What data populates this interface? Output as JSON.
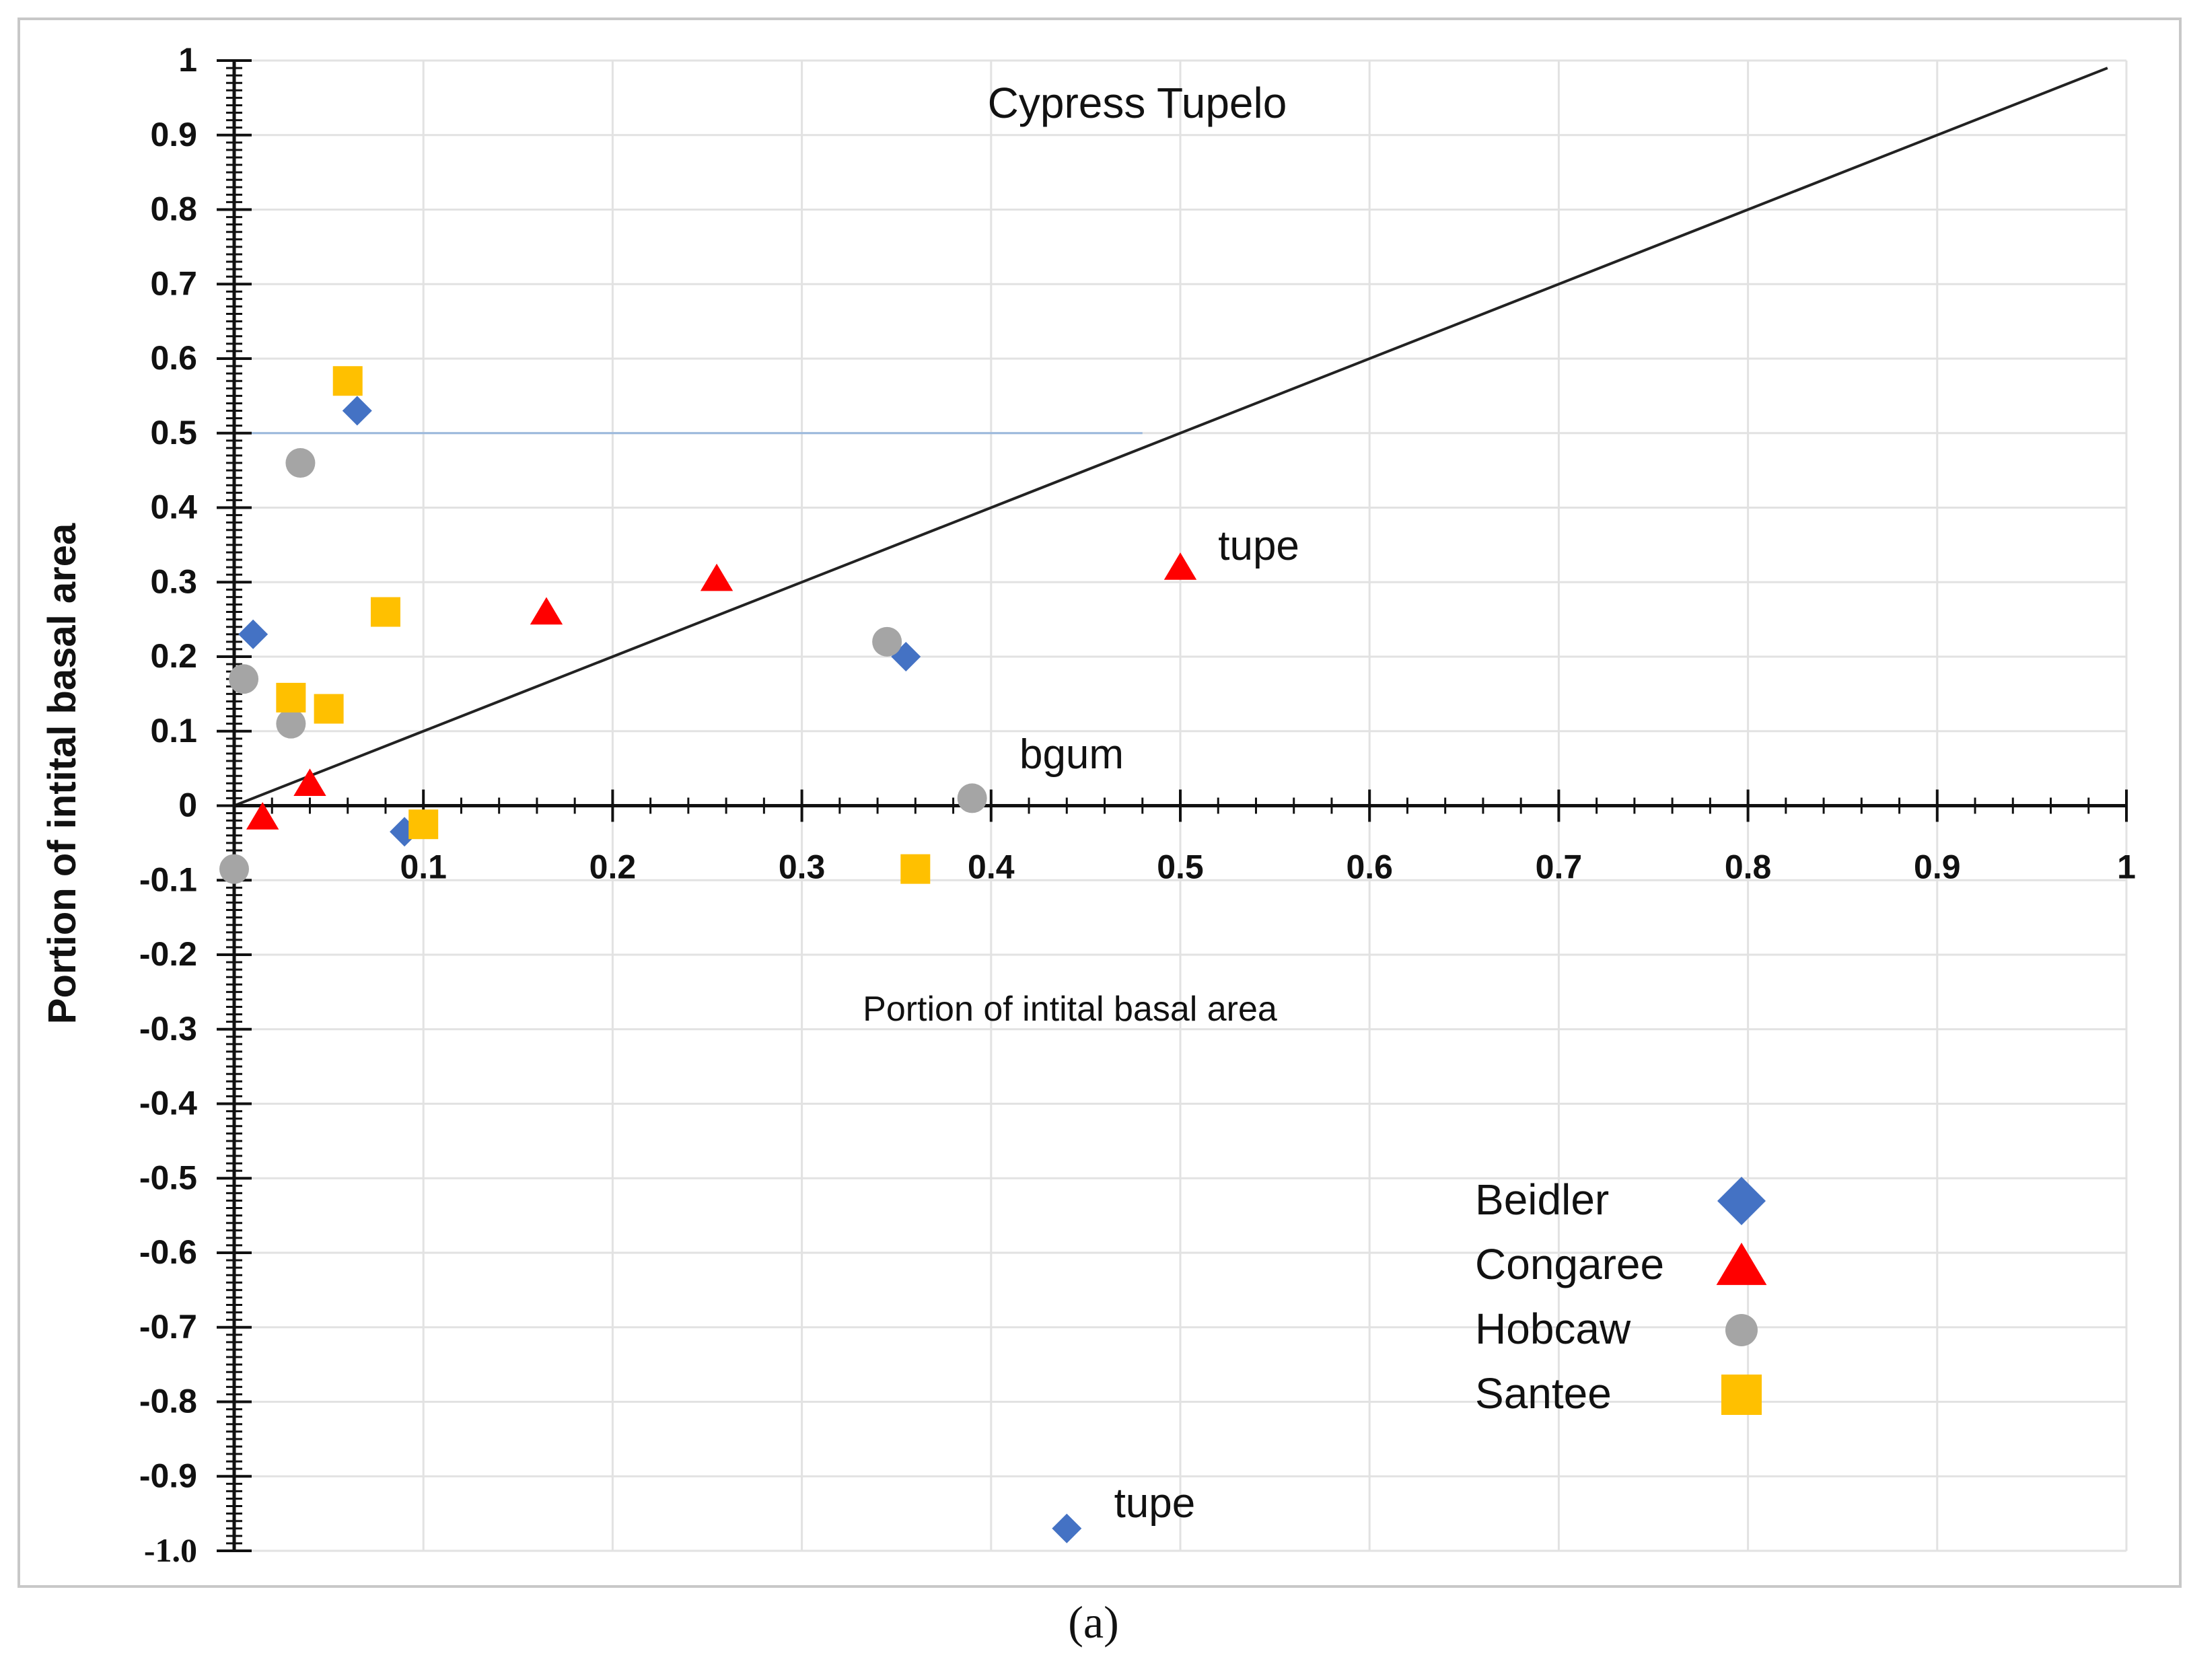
{
  "chart_data": {
    "type": "scatter",
    "title": "Cypress Tupelo",
    "xlabel": "Portion of intital basal area",
    "ylabel": "Portion of intital basal area",
    "xlim": [
      0,
      1
    ],
    "ylim": [
      -1.0,
      1
    ],
    "x_ticks": [
      "0.1",
      "0.2",
      "0.3",
      "0.4",
      "0.5",
      "0.6",
      "0.7",
      "0.8",
      "0.9",
      "1"
    ],
    "x_tick_values": [
      0.1,
      0.2,
      0.3,
      0.4,
      0.5,
      0.6,
      0.7,
      0.8,
      0.9,
      1
    ],
    "y_ticks": [
      "1",
      "0.9",
      "0.8",
      "0.7",
      "0.6",
      "0.5",
      "0.4",
      "0.3",
      "0.2",
      "0.1",
      "0",
      "-0.1",
      "-0.2",
      "-0.3",
      "-0.4",
      "-0.5",
      "-0.6",
      "-0.7",
      "-0.8",
      "-0.9",
      "-1.0"
    ],
    "y_tick_values": [
      1,
      0.9,
      0.8,
      0.7,
      0.6,
      0.5,
      0.4,
      0.3,
      0.2,
      0.1,
      0,
      -0.1,
      -0.2,
      -0.3,
      -0.4,
      -0.5,
      -0.6,
      -0.7,
      -0.8,
      -0.9,
      -1.0
    ],
    "grid": true,
    "legend_position": "bottom-right",
    "reference_lines": [
      {
        "name": "one-to-one",
        "points": [
          [
            0,
            0
          ],
          [
            0.99,
            0.99
          ]
        ],
        "color": "#222222"
      },
      {
        "name": "half-line",
        "points": [
          [
            0,
            0.5
          ],
          [
            0.48,
            0.5
          ]
        ],
        "color": "#9bb8dc"
      }
    ],
    "series": [
      {
        "name": "Beidler",
        "marker": "diamond",
        "color": "#4472c4",
        "points": [
          [
            0.01,
            0.23
          ],
          [
            0.065,
            0.53
          ],
          [
            0.09,
            -0.035
          ],
          [
            0.355,
            0.2
          ],
          [
            0.44,
            -0.97
          ]
        ]
      },
      {
        "name": "Congaree",
        "marker": "triangle",
        "color": "#ff0000",
        "points": [
          [
            0.015,
            -0.015
          ],
          [
            0.04,
            0.03
          ],
          [
            0.165,
            0.26
          ],
          [
            0.255,
            0.305
          ],
          [
            0.5,
            0.32
          ]
        ]
      },
      {
        "name": "Hobcaw",
        "marker": "circle",
        "color": "#a5a5a5",
        "points": [
          [
            0.0,
            -0.085
          ],
          [
            0.005,
            0.17
          ],
          [
            0.03,
            0.11
          ],
          [
            0.035,
            0.46
          ],
          [
            0.345,
            0.22
          ],
          [
            0.39,
            0.01
          ]
        ]
      },
      {
        "name": "Santee",
        "marker": "square",
        "color": "#ffc000",
        "points": [
          [
            0.03,
            0.145
          ],
          [
            0.05,
            0.13
          ],
          [
            0.06,
            0.57
          ],
          [
            0.08,
            0.26
          ],
          [
            0.1,
            -0.025
          ],
          [
            0.36,
            -0.085
          ]
        ]
      }
    ],
    "annotations": [
      {
        "text": "tupe",
        "x": 0.52,
        "y": 0.33
      },
      {
        "text": "bgum",
        "x": 0.415,
        "y": 0.05
      },
      {
        "text": "tupe",
        "x": 0.465,
        "y": -0.955
      }
    ]
  },
  "caption": "(a)"
}
